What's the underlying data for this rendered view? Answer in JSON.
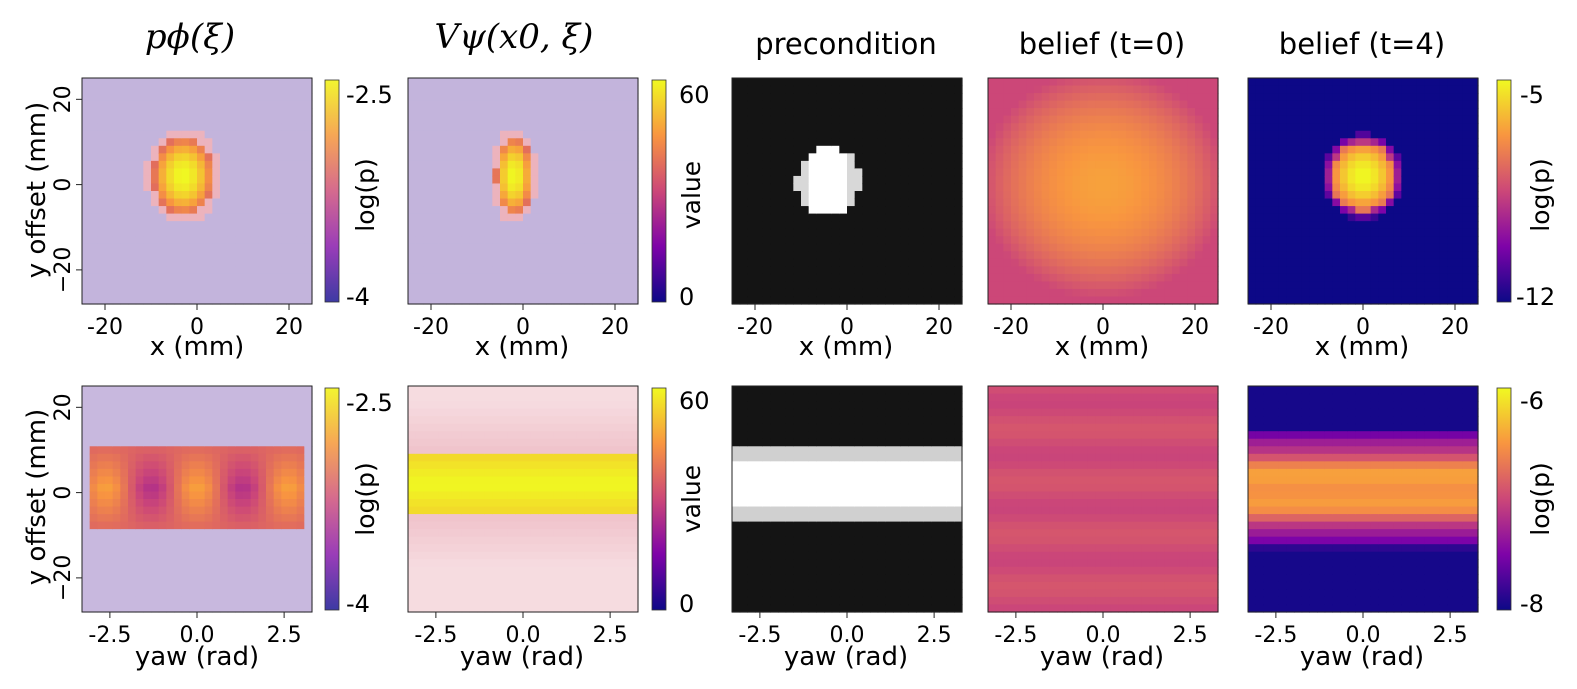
{
  "figure": {
    "titles": {
      "p_phi": "pϕ(ξ)",
      "v_psi": "Vψ(x0, ξ)",
      "precondition": "precondition",
      "belief_t0": "belief (t=0)",
      "belief_t4": "belief (t=4)"
    },
    "axis_labels": {
      "x_mm": "x (mm)",
      "yaw_rad": "yaw (rad)",
      "y_offset": "y offset (mm)"
    },
    "colorbar_labels": {
      "logp": "log(p)",
      "value": "value"
    }
  },
  "chart_data": [
    {
      "id": "p_phi_xy",
      "type": "heatmap",
      "title": "pϕ(ξ)",
      "xlabel": "x (mm)",
      "ylabel": "y offset (mm)",
      "xlim": [
        -25,
        25
      ],
      "ylim": [
        -28,
        25
      ],
      "xticks": [
        "-20",
        "0",
        "20"
      ],
      "xtick_values": [
        -20,
        0,
        20
      ],
      "yticks": [
        "20",
        "0",
        "−20"
      ],
      "ytick_values": [
        20,
        0,
        -20
      ],
      "colorbar": {
        "label": "log(p)",
        "ticks": [
          "-2.5",
          "-4"
        ],
        "range": [
          -4.0,
          -2.4
        ]
      },
      "feature": {
        "shape": "blob",
        "center": [
          -3,
          2
        ],
        "radius": [
          6.5,
          9
        ]
      }
    },
    {
      "id": "v_psi_xy",
      "type": "heatmap",
      "title": "Vψ(x0, ξ)",
      "xlabel": "x (mm)",
      "ylabel": "",
      "xlim": [
        -25,
        25
      ],
      "ylim": [
        -28,
        25
      ],
      "xticks": [
        "-20",
        "0",
        "20"
      ],
      "xtick_values": [
        -20,
        0,
        20
      ],
      "yticks": [],
      "ytick_values": [],
      "colorbar": {
        "label": "value",
        "ticks": [
          "60",
          "0"
        ],
        "range": [
          0,
          65
        ]
      },
      "feature": {
        "shape": "blob",
        "center": [
          -2,
          2
        ],
        "radius": [
          4,
          9
        ]
      }
    },
    {
      "id": "precondition_xy",
      "type": "heatmap",
      "title": "precondition",
      "xlabel": "x (mm)",
      "ylabel": "",
      "xlim": [
        -25,
        25
      ],
      "ylim": [
        -28,
        25
      ],
      "xticks": [
        "-20",
        "0",
        "20"
      ],
      "xtick_values": [
        -20,
        0,
        20
      ],
      "yticks": [],
      "ytick_values": [],
      "colorbar": null,
      "feature": {
        "shape": "mask-blob",
        "center": [
          -4,
          1
        ],
        "radius": [
          7,
          8
        ]
      }
    },
    {
      "id": "belief_t0_xy",
      "type": "heatmap",
      "title": "belief (t=0)",
      "xlabel": "x (mm)",
      "ylabel": "",
      "xlim": [
        -25,
        25
      ],
      "ylim": [
        -28,
        25
      ],
      "xticks": [
        "-20",
        "0",
        "20"
      ],
      "xtick_values": [
        -20,
        0,
        20
      ],
      "yticks": [],
      "ytick_values": [],
      "colorbar": null,
      "feature": {
        "shape": "wide-gaussian",
        "center": [
          0,
          0
        ],
        "radius": [
          30,
          30
        ]
      }
    },
    {
      "id": "belief_t4_xy",
      "type": "heatmap",
      "title": "belief (t=4)",
      "xlabel": "x (mm)",
      "ylabel": "",
      "xlim": [
        -25,
        25
      ],
      "ylim": [
        -28,
        25
      ],
      "xticks": [
        "-20",
        "0",
        "20"
      ],
      "xtick_values": [
        -20,
        0,
        20
      ],
      "yticks": [],
      "ytick_values": [],
      "colorbar": {
        "label": "log(p)",
        "ticks": [
          "-5",
          "-12"
        ],
        "range": [
          -12.3,
          -4.7
        ]
      },
      "feature": {
        "shape": "blob",
        "center": [
          0,
          2
        ],
        "radius": [
          7,
          8
        ]
      }
    },
    {
      "id": "p_phi_yaw",
      "type": "heatmap",
      "title": "",
      "xlabel": "yaw (rad)",
      "ylabel": "y offset (mm)",
      "xlim": [
        -3.3,
        3.3
      ],
      "ylim": [
        -28,
        25
      ],
      "xticks": [
        "-2.5",
        "0.0",
        "2.5"
      ],
      "xtick_values": [
        -2.5,
        0,
        2.5
      ],
      "yticks": [
        "20",
        "0",
        "−20"
      ],
      "ytick_values": [
        20,
        0,
        -20
      ],
      "colorbar": {
        "label": "log(p)",
        "ticks": [
          "-2.5",
          "-4"
        ],
        "range": [
          -4.0,
          -2.4
        ]
      },
      "feature": {
        "shape": "band",
        "center": [
          0,
          1
        ],
        "radius": [
          3.0,
          10
        ]
      }
    },
    {
      "id": "v_psi_yaw",
      "type": "heatmap",
      "title": "",
      "xlabel": "yaw (rad)",
      "ylabel": "",
      "xlim": [
        -3.3,
        3.3
      ],
      "ylim": [
        -28,
        25
      ],
      "xticks": [
        "-2.5",
        "0.0",
        "2.5"
      ],
      "xtick_values": [
        -2.5,
        0,
        2.5
      ],
      "yticks": [],
      "ytick_values": [],
      "colorbar": {
        "label": "value",
        "ticks": [
          "60",
          "0"
        ],
        "range": [
          0,
          65
        ]
      },
      "feature": {
        "shape": "band",
        "center": [
          0,
          2
        ],
        "radius": [
          3.3,
          6.5
        ]
      }
    },
    {
      "id": "precondition_yaw",
      "type": "heatmap",
      "title": "",
      "xlabel": "yaw (rad)",
      "ylabel": "",
      "xlim": [
        -3.3,
        3.3
      ],
      "ylim": [
        -28,
        25
      ],
      "xticks": [
        "-2.5",
        "0.0",
        "2.5"
      ],
      "xtick_values": [
        -2.5,
        0,
        2.5
      ],
      "yticks": [],
      "ytick_values": [],
      "colorbar": null,
      "feature": {
        "shape": "mask-band",
        "center": [
          0,
          2
        ],
        "radius": [
          3.2,
          9
        ]
      }
    },
    {
      "id": "belief_t0_yaw",
      "type": "heatmap",
      "title": "",
      "xlabel": "yaw (rad)",
      "ylabel": "",
      "xlim": [
        -3.3,
        3.3
      ],
      "ylim": [
        -28,
        25
      ],
      "xticks": [
        "-2.5",
        "0.0",
        "2.5"
      ],
      "xtick_values": [
        -2.5,
        0,
        2.5
      ],
      "yticks": [],
      "ytick_values": [],
      "colorbar": null,
      "feature": {
        "shape": "uniform",
        "center": [
          0,
          0
        ],
        "radius": [
          3.3,
          40
        ]
      }
    },
    {
      "id": "belief_t4_yaw",
      "type": "heatmap",
      "title": "",
      "xlabel": "yaw (rad)",
      "ylabel": "",
      "xlim": [
        -3.3,
        3.3
      ],
      "ylim": [
        -28,
        25
      ],
      "xticks": [
        "-2.5",
        "0.0",
        "2.5"
      ],
      "xtick_values": [
        -2.5,
        0,
        2.5
      ],
      "yticks": [],
      "ytick_values": [],
      "colorbar": {
        "label": "log(p)",
        "ticks": [
          "-6",
          "-8"
        ],
        "range": [
          -8.2,
          -5.8
        ]
      },
      "feature": {
        "shape": "stripes",
        "center": [
          0,
          1
        ],
        "radius": [
          3.3,
          14
        ]
      }
    }
  ]
}
